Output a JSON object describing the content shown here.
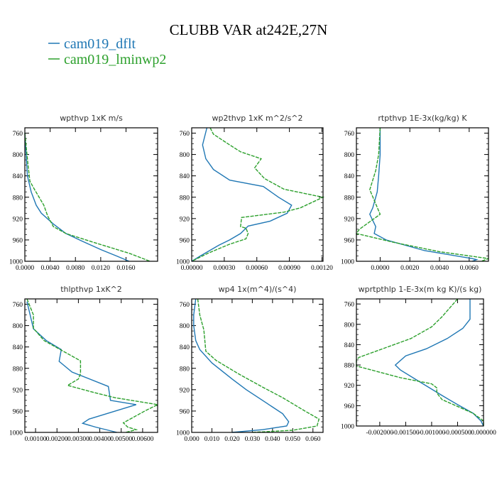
{
  "chart_data": {
    "title": "CLUBB VAR at242E,27N",
    "legend": {
      "placement": "top-left",
      "entries": [
        {
          "name": "cam019_dflt",
          "color": "#1f77b4",
          "style": "solid"
        },
        {
          "name": "cam019_lminwp2",
          "color": "#2ca02c",
          "style": "dashed"
        }
      ]
    },
    "panels": [
      {
        "type": "line",
        "title": "wpthvp   1xK m/s",
        "ylim": [
          1000,
          750
        ],
        "xlim": [
          0,
          0.021
        ],
        "yticks": [
          "760",
          "800",
          "840",
          "880",
          "920",
          "960",
          "1000"
        ],
        "xticks": [
          "0.0000",
          "0.0040",
          "0.0080",
          "0.0120",
          "0.0160"
        ],
        "series": [
          {
            "name": "cam019_dflt",
            "points": [
              [
                0,
                760
              ],
              [
                0.0002,
                800
              ],
              [
                0.0004,
                840
              ],
              [
                0.001,
                870
              ],
              [
                0.0018,
                895
              ],
              [
                0.0026,
                910
              ],
              [
                0.0045,
                930
              ],
              [
                0.0065,
                948
              ],
              [
                0.009,
                962
              ],
              [
                0.012,
                978
              ],
              [
                0.0145,
                990
              ],
              [
                0.0165,
                1000
              ]
            ]
          },
          {
            "name": "cam019_lminwp2",
            "points": [
              [
                0,
                760
              ],
              [
                0.0005,
                820
              ],
              [
                0.0008,
                850
              ],
              [
                0.0015,
                865
              ],
              [
                0.003,
                895
              ],
              [
                0.0036,
                915
              ],
              [
                0.0045,
                935
              ],
              [
                0.0065,
                948
              ],
              [
                0.011,
                965
              ],
              [
                0.0165,
                985
              ],
              [
                0.0198,
                1000
              ]
            ]
          }
        ]
      },
      {
        "type": "line",
        "title": "wp2thvp   1xK m^2/s^2",
        "ylim": [
          1000,
          750
        ],
        "xlim": [
          0,
          0.00121
        ],
        "yticks": [
          "760",
          "800",
          "840",
          "880",
          "920",
          "960",
          "1000"
        ],
        "xticks": [
          "0.00000",
          "0.00030",
          "0.00060",
          "0.00090",
          "0.00120"
        ],
        "series": [
          {
            "name": "cam019_dflt",
            "points": [
              [
                0.00014,
                750
              ],
              [
                0.0001,
                782
              ],
              [
                0.00013,
                808
              ],
              [
                0.0002,
                828
              ],
              [
                0.00035,
                848
              ],
              [
                0.00066,
                860
              ],
              [
                0.0008,
                880
              ],
              [
                0.00092,
                895
              ],
              [
                0.00088,
                910
              ],
              [
                0.00072,
                925
              ],
              [
                0.00052,
                934
              ],
              [
                0.00045,
                948
              ],
              [
                0.00035,
                960
              ],
              [
                0.00025,
                970
              ],
              [
                8e-05,
                990
              ],
              [
                0,
                1000
              ]
            ]
          },
          {
            "name": "cam019_lminwp2",
            "points": [
              [
                0.00017,
                750
              ],
              [
                0.0002,
                762
              ],
              [
                0.00035,
                782
              ],
              [
                0.00045,
                795
              ],
              [
                0.00064,
                808
              ],
              [
                0.00058,
                825
              ],
              [
                0.00067,
                845
              ],
              [
                0.00085,
                865
              ],
              [
                0.00121,
                880
              ],
              [
                0.001,
                900
              ],
              [
                0.00085,
                908
              ],
              [
                0.00046,
                918
              ],
              [
                0.00045,
                935
              ],
              [
                0.0005,
                938
              ],
              [
                0.00052,
                948
              ],
              [
                0.0005,
                958
              ],
              [
                0.00035,
                968
              ],
              [
                0.00015,
                985
              ],
              [
                0,
                1000
              ]
            ]
          }
        ]
      },
      {
        "type": "line",
        "title": "rtpthvp   1E-3x(kg/kg) K",
        "ylim": [
          1000,
          750
        ],
        "xlim": [
          -0.0016,
          0.0073
        ],
        "yticks": [
          "760",
          "800",
          "840",
          "880",
          "920",
          "960",
          "1000"
        ],
        "xticks": [
          "0.0000",
          "0.0020",
          "0.0040",
          "0.0060"
        ],
        "series": [
          {
            "name": "cam019_dflt",
            "points": [
              [
                0,
                750
              ],
              [
                0,
                800
              ],
              [
                -0.0001,
                840
              ],
              [
                -0.0002,
                870
              ],
              [
                -0.0005,
                900
              ],
              [
                -0.0007,
                912
              ],
              [
                -0.0003,
                935
              ],
              [
                -0.0004,
                948
              ],
              [
                0.0004,
                960
              ],
              [
                0.003,
                980
              ],
              [
                0.0062,
                995
              ],
              [
                0.0065,
                997
              ],
              [
                0.0062,
                1000
              ]
            ]
          },
          {
            "name": "cam019_lminwp2",
            "points": [
              [
                0,
                750
              ],
              [
                -0.0001,
                800
              ],
              [
                -0.0003,
                830
              ],
              [
                -0.0007,
                866
              ],
              [
                0,
                912
              ],
              [
                -0.0014,
                940
              ],
              [
                -0.0016,
                948
              ],
              [
                0.001,
                965
              ],
              [
                0.004,
                982
              ],
              [
                0.0073,
                995
              ],
              [
                0.0068,
                1000
              ]
            ]
          }
        ]
      },
      {
        "type": "line",
        "title": "thlpthvp   1xK^2",
        "ylim": [
          1000,
          750
        ],
        "xlim": [
          0.0005,
          0.0067
        ],
        "yticks": [
          "760",
          "800",
          "840",
          "880",
          "920",
          "960",
          "1000"
        ],
        "xticks": [
          "0.00100",
          "0.00200",
          "0.00300",
          "0.00400",
          "0.00500",
          "0.00600"
        ],
        "series": [
          {
            "name": "cam019_dflt",
            "points": [
              [
                0.0006,
                755
              ],
              [
                0.0009,
                806
              ],
              [
                0.0015,
                828
              ],
              [
                0.0022,
                845
              ],
              [
                0.0021,
                867
              ],
              [
                0.0027,
                887
              ],
              [
                0.0044,
                914
              ],
              [
                0.0045,
                940
              ],
              [
                0.0057,
                948
              ],
              [
                0.0035,
                975
              ],
              [
                0.0032,
                983
              ],
              [
                0.0038,
                990
              ],
              [
                0.0048,
                1000
              ]
            ]
          },
          {
            "name": "cam019_lminwp2",
            "points": [
              [
                0.0006,
                750
              ],
              [
                0.0009,
                780
              ],
              [
                0.0009,
                805
              ],
              [
                0.0014,
                828
              ],
              [
                0.0031,
                866
              ],
              [
                0.0031,
                890
              ],
              [
                0.003,
                900
              ],
              [
                0.0025,
                912
              ],
              [
                0.0037,
                925
              ],
              [
                0.0047,
                935
              ],
              [
                0.0067,
                948
              ],
              [
                0.0061,
                960
              ],
              [
                0.0051,
                982
              ],
              [
                0.0053,
                990
              ],
              [
                0.0057,
                995
              ],
              [
                0.0052,
                1000
              ]
            ]
          }
        ]
      },
      {
        "type": "line",
        "title": "wp4   1x(m^4)/(s^4)",
        "ylim": [
          1000,
          750
        ],
        "xlim": [
          0,
          0.065
        ],
        "yticks": [
          "760",
          "800",
          "840",
          "880",
          "920",
          "960",
          "1000"
        ],
        "xticks": [
          "0.000",
          "0.010",
          "0.020",
          "0.030",
          "0.040",
          "0.050",
          "0.060"
        ],
        "series": [
          {
            "name": "cam019_dflt",
            "points": [
              [
                0.002,
                750
              ],
              [
                0.001,
                780
              ],
              [
                0.001,
                800
              ],
              [
                0.002,
                828
              ],
              [
                0.004,
                845
              ],
              [
                0.01,
                870
              ],
              [
                0.02,
                900
              ],
              [
                0.027,
                920
              ],
              [
                0.037,
                945
              ],
              [
                0.045,
                965
              ],
              [
                0.048,
                980
              ],
              [
                0.047,
                988
              ],
              [
                0.035,
                995
              ],
              [
                0.02,
                1000
              ]
            ]
          },
          {
            "name": "cam019_lminwp2",
            "points": [
              [
                0.003,
                750
              ],
              [
                0.004,
                780
              ],
              [
                0.006,
                808
              ],
              [
                0.007,
                848
              ],
              [
                0.012,
                865
              ],
              [
                0.023,
                890
              ],
              [
                0.035,
                915
              ],
              [
                0.045,
                935
              ],
              [
                0.056,
                960
              ],
              [
                0.063,
                975
              ],
              [
                0.062,
                988
              ],
              [
                0.05,
                996
              ],
              [
                0.03,
                1000
              ]
            ]
          }
        ]
      },
      {
        "type": "line",
        "title": "wprtpthlp   1-E-3x(m kg K)/(s kg)",
        "ylim": [
          1000,
          750
        ],
        "xlim": [
          -0.00245,
          0
        ],
        "yticks": [
          "760",
          "800",
          "840",
          "880",
          "920",
          "960",
          "1000"
        ],
        "xticks": [
          "-0.002000",
          "-0.001500",
          "-0.001000",
          "-0.000500",
          "0.000000"
        ],
        "series": [
          {
            "name": "cam019_dflt",
            "points": [
              [
                -0.00026,
                750
              ],
              [
                -0.00026,
                790
              ],
              [
                -0.0004,
                808
              ],
              [
                -0.0007,
                828
              ],
              [
                -0.0011,
                848
              ],
              [
                -0.0015,
                862
              ],
              [
                -0.0017,
                880
              ],
              [
                -0.0016,
                890
              ],
              [
                -0.0012,
                915
              ],
              [
                -0.0008,
                940
              ],
              [
                -0.0005,
                958
              ],
              [
                -0.0002,
                975
              ],
              [
                -5e-05,
                990
              ],
              [
                0,
                1000
              ]
            ]
          },
          {
            "name": "cam019_lminwp2",
            "points": [
              [
                -0.0005,
                750
              ],
              [
                -0.0008,
                785
              ],
              [
                -0.001,
                805
              ],
              [
                -0.0014,
                828
              ],
              [
                -0.0024,
                865
              ],
              [
                -0.00245,
                870
              ],
              [
                -0.00245,
                882
              ],
              [
                -0.0016,
                905
              ],
              [
                -0.001,
                917
              ],
              [
                -0.0009,
                925
              ],
              [
                -0.0009,
                935
              ],
              [
                -0.0008,
                948
              ],
              [
                -0.0002,
                975
              ],
              [
                0,
                990
              ],
              [
                0,
                1000
              ]
            ]
          }
        ]
      }
    ]
  }
}
